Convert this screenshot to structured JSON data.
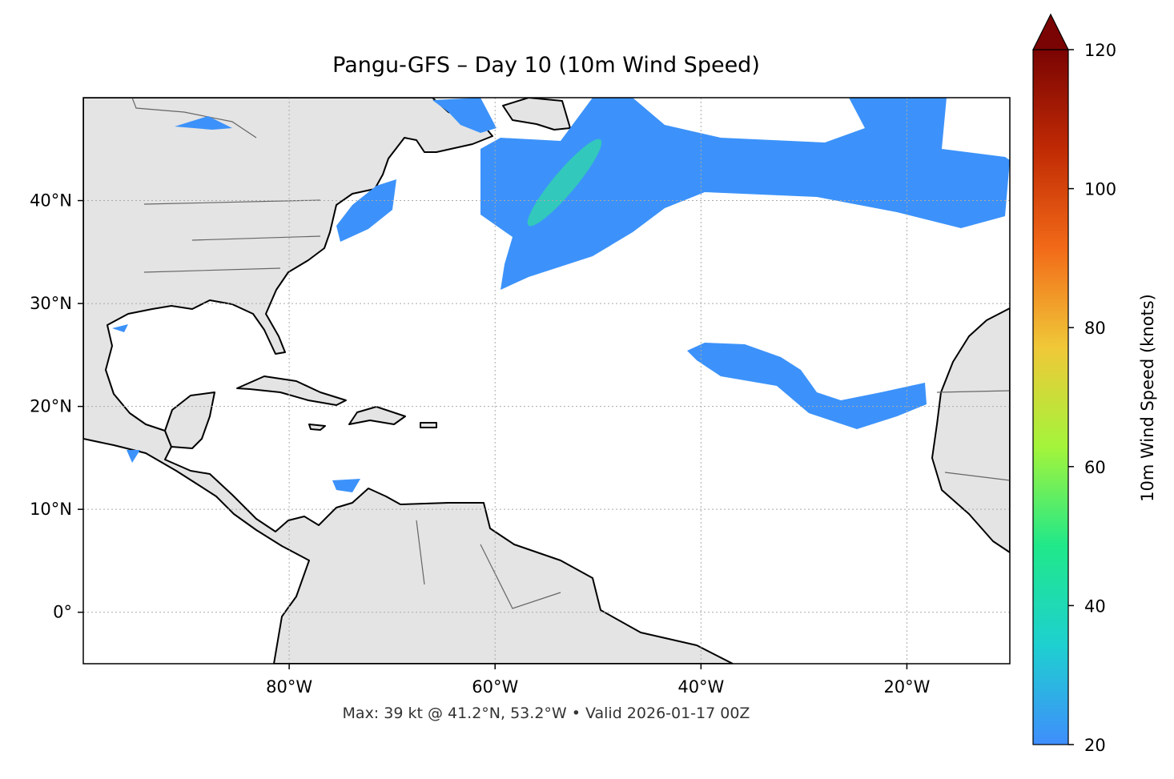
{
  "chart_data": {
    "type": "map",
    "title": "Pangu-GFS – Day 10 (10m Wind Speed)",
    "footer": "Max: 39 kt @ 41.2°N, 53.2°W • Valid 2026-01-17 00Z",
    "xlim": [
      -100,
      -10
    ],
    "ylim": [
      -5,
      50
    ],
    "xticks": [
      {
        "value": -80,
        "label": "80°W"
      },
      {
        "value": -60,
        "label": "60°W"
      },
      {
        "value": -40,
        "label": "40°W"
      },
      {
        "value": -20,
        "label": "20°W"
      }
    ],
    "yticks": [
      {
        "value": 0,
        "label": "0°"
      },
      {
        "value": 10,
        "label": "10°N"
      },
      {
        "value": 20,
        "label": "20°N"
      },
      {
        "value": 30,
        "label": "30°N"
      },
      {
        "value": 40,
        "label": "40°N"
      }
    ],
    "grid": true,
    "colorbar": {
      "label": "10m Wind Speed (knots)",
      "lim": [
        20,
        120
      ],
      "ticks": [
        20,
        40,
        60,
        80,
        100,
        120
      ],
      "colors": [
        "#3f8efc",
        "#1ed0d0",
        "#20e88a",
        "#a4f43a",
        "#f0c838",
        "#f26a18",
        "#c02a04",
        "#7a0403"
      ]
    }
  }
}
